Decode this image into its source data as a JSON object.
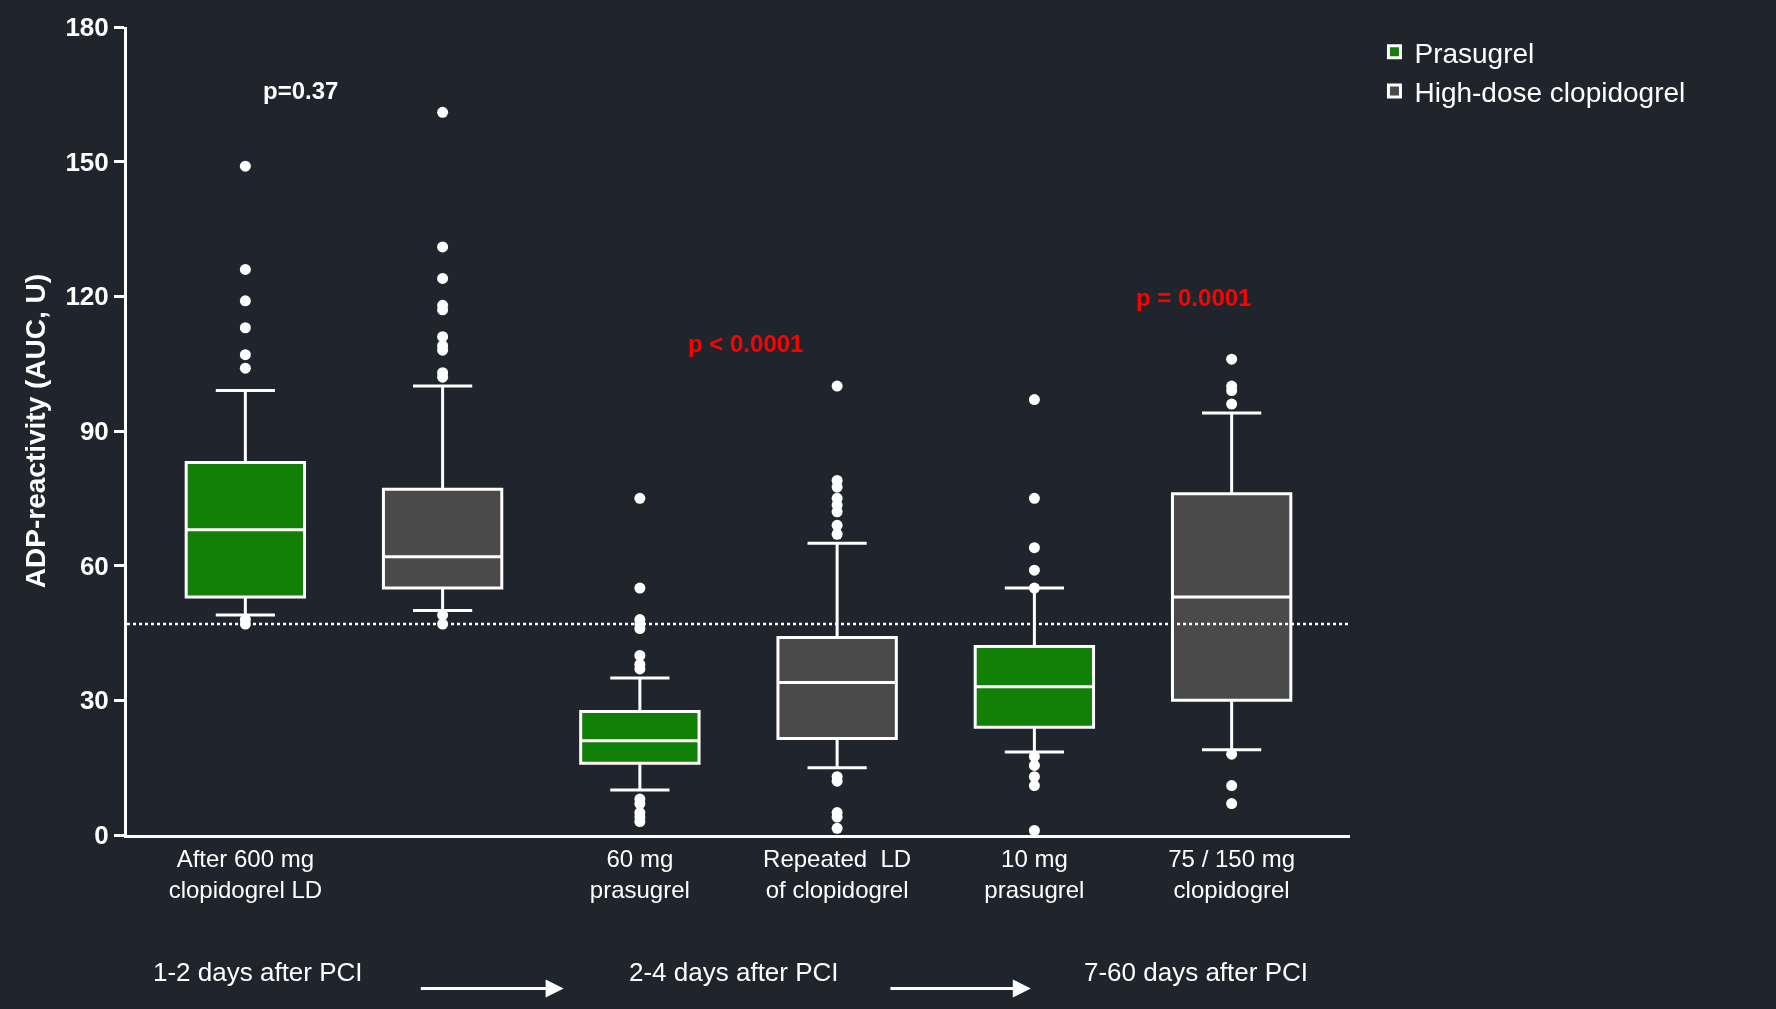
{
  "chart_data": {
    "type": "box",
    "ylabel": "ADP-reactivity (AUC, U)",
    "categories": [
      "After 600 mg\nclopidogrel LD",
      null,
      "60 mg\nprasugrel",
      "Repeated  LD\nof clopidogrel",
      "10 mg\nprasugrel",
      "75 / 150 mg\nclopidogrel"
    ],
    "series": [
      {
        "name": "Prasugrel",
        "color": "#127f06",
        "boxes": [
          {
            "low": 49,
            "q1": 53,
            "median": 68,
            "q3": 83,
            "high": 99,
            "outliers": [
              149,
              126,
              119,
              113,
              107,
              104,
              48,
              47
            ]
          },
          null,
          {
            "low": 10,
            "q1": 16,
            "median": 21,
            "q3": 27.5,
            "high": 35,
            "outliers": [
              75,
              55,
              48,
              47,
              46,
              40,
              38,
              37,
              8,
              7,
              5,
              4,
              3
            ]
          },
          null,
          {
            "low": 18.5,
            "q1": 24,
            "median": 33,
            "q3": 42,
            "high": 55,
            "outliers": [
              97,
              75,
              64,
              59,
              55,
              17.5,
              15.5,
              13,
              11,
              1
            ]
          },
          null
        ]
      },
      {
        "name": "High-dose clopidogrel",
        "color": "#4a4a4a",
        "boxes": [
          null,
          {
            "low": 50,
            "q1": 55,
            "median": 62,
            "q3": 77,
            "high": 100,
            "outliers": [
              161,
              131,
              124,
              118,
              117,
              111,
              109,
              108,
              103,
              102,
              49,
              47
            ]
          },
          null,
          {
            "low": 15,
            "q1": 21.5,
            "median": 34,
            "q3": 44,
            "high": 65,
            "outliers": [
              100,
              79,
              77.5,
              75,
              73.5,
              72,
              69,
              67,
              13,
              12,
              5,
              4,
              1.5
            ]
          },
          null,
          {
            "low": 19,
            "q1": 30,
            "median": 53,
            "q3": 76,
            "high": 94,
            "outliers": [
              106,
              100,
              99,
              96,
              18,
              11,
              7
            ]
          }
        ]
      }
    ],
    "ylim": [
      0,
      180
    ],
    "yticks": [
      0,
      30,
      60,
      90,
      120,
      150,
      180
    ],
    "ref_lines": [
      {
        "axis": "y",
        "value": 47,
        "line_style": "dotted",
        "color": "#ffffff"
      }
    ],
    "annotations": [
      "p=0.37",
      "p < 0.0001",
      "p = 0.0001",
      "1-2 days after PCI",
      "2-4 days after PCI",
      "7-60 days after PCI"
    ],
    "legend": "top right",
    "grid": false
  }
}
